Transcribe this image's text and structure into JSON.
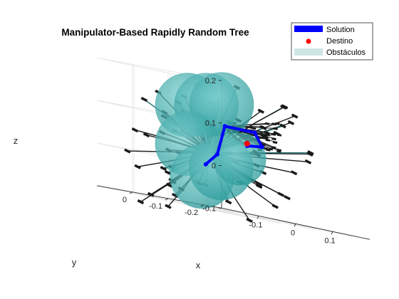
{
  "chart_data": {
    "type": "scatter",
    "projection": "3d",
    "title": "Manipulator-Based Rapidly Random Tree",
    "xlabel": "x",
    "ylabel": "y",
    "zlabel": "z",
    "xlim": [
      -0.2,
      0.2
    ],
    "ylim": [
      -0.25,
      0.1
    ],
    "zlim": [
      -0.1,
      0.2
    ],
    "xticks": [
      -0.1,
      0,
      0.1
    ],
    "yticks": [
      -0.2,
      -0.1,
      0
    ],
    "zticks": [
      -0.1,
      0,
      0.1,
      0.2
    ],
    "grid": true,
    "legend_position": "top-right outside",
    "legend": [
      {
        "label": "Solution",
        "marker": "line",
        "color": "#0000ff"
      },
      {
        "label": "Destino",
        "marker": "dot",
        "color": "#ff0000"
      },
      {
        "label": "Obstáculos",
        "marker": "patch",
        "color": "#cfe6e6"
      }
    ],
    "colors": {
      "solution": "#0000ff",
      "target": "#ff0000",
      "obstacle": "#40b0b0",
      "tree": "#1a1a1a"
    },
    "obstacles_3d": [
      {
        "x": -0.1,
        "y": -0.05,
        "z": 0.13,
        "r": 0.055
      },
      {
        "x": -0.02,
        "y": -0.02,
        "z": 0.14,
        "r": 0.055
      },
      {
        "x": 0.05,
        "y": 0.01,
        "z": 0.15,
        "r": 0.055
      },
      {
        "x": -0.1,
        "y": -0.05,
        "z": 0.04,
        "r": 0.055
      },
      {
        "x": -0.06,
        "y": -0.05,
        "z": -0.03,
        "r": 0.055
      },
      {
        "x": 0.02,
        "y": -0.02,
        "z": 0.0,
        "r": 0.055
      },
      {
        "x": 0.07,
        "y": -0.02,
        "z": 0.03,
        "r": 0.045
      }
    ],
    "target": {
      "x": 0.09,
      "y": -0.02,
      "z": 0.07
    },
    "solution_path": [
      {
        "x": -0.06,
        "y": -0.06,
        "z": 0.0
      },
      {
        "x": 0.0,
        "y": -0.03,
        "z": 0.03
      },
      {
        "x": 0.03,
        "y": -0.02,
        "z": 0.1
      },
      {
        "x": 0.12,
        "y": -0.01,
        "z": 0.1
      },
      {
        "x": 0.14,
        "y": -0.01,
        "z": 0.07
      },
      {
        "x": 0.1,
        "y": -0.01,
        "z": 0.065
      }
    ]
  }
}
